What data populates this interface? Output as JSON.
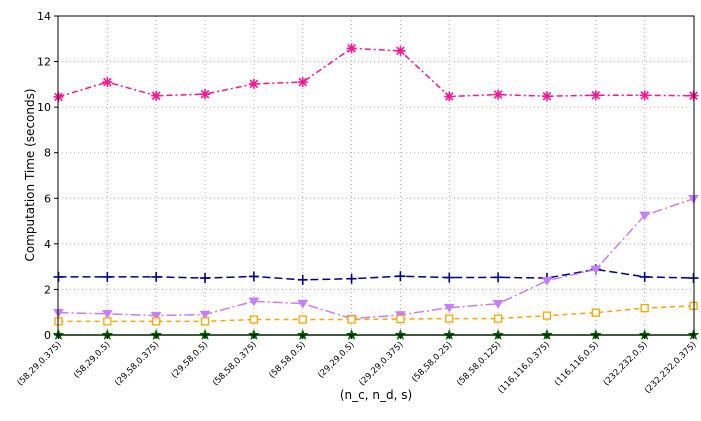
{
  "chart_data": {
    "type": "line",
    "title": "",
    "xlabel": "(n_c, n_d, s)",
    "ylabel": "Computation Time (seconds)",
    "ylim": [
      0,
      14
    ],
    "yticks": [
      "0",
      "2",
      "4",
      "6",
      "8",
      "10",
      "12",
      "14"
    ],
    "categories": [
      "(58,29,0.375)",
      "(58,29,0.5)",
      "(29,58,0.375)",
      "(29,58,0.5)",
      "(58,58,0.375)",
      "(58,58,0.5)",
      "(29,29,0.5)",
      "(29,29,0.375)",
      "(58,58,0.25)",
      "(58,58,0.125)",
      "(116,116,0.375)",
      "(116,116,0.5)",
      "(232,232,0.5)",
      "(232,232,0.375)"
    ],
    "grid": true,
    "legend": "none",
    "series": [
      {
        "color": "#ff1493",
        "dash": "6,3,2,3",
        "marker": "asterisk",
        "values": [
          10.45,
          11.1,
          10.5,
          10.57,
          11.02,
          11.1,
          12.58,
          12.47,
          10.47,
          10.55,
          10.48,
          10.52,
          10.52,
          10.5
        ]
      },
      {
        "color": "#00008b",
        "dash": "8,4",
        "marker": "plus",
        "values": [
          2.55,
          2.55,
          2.55,
          2.5,
          2.57,
          2.42,
          2.47,
          2.58,
          2.52,
          2.53,
          2.5,
          2.88,
          2.55,
          2.5
        ]
      },
      {
        "color": "#c77dff",
        "dash": "10,3,2,3",
        "marker": "triangle-down",
        "values": [
          0.98,
          0.93,
          0.85,
          0.9,
          1.48,
          1.38,
          0.72,
          0.88,
          1.2,
          1.37,
          2.38,
          2.88,
          5.25,
          5.98
        ]
      },
      {
        "color": "#ffa500",
        "dash": "5,4",
        "marker": "square",
        "values": [
          0.6,
          0.6,
          0.6,
          0.6,
          0.68,
          0.68,
          0.68,
          0.7,
          0.72,
          0.72,
          0.85,
          0.98,
          1.18,
          1.28
        ]
      },
      {
        "color": "#006400",
        "dash": "",
        "marker": "star",
        "values": [
          0,
          0,
          0,
          0,
          0,
          0,
          0,
          0,
          0,
          0,
          0,
          0,
          0,
          0
        ]
      }
    ]
  }
}
